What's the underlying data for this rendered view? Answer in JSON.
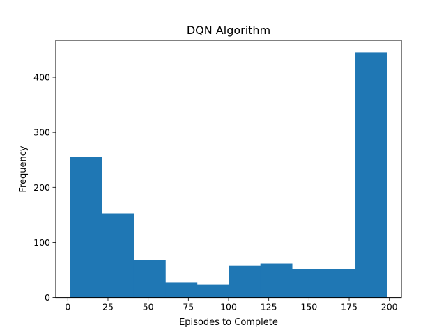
{
  "chart_data": {
    "type": "bar",
    "subtype": "histogram",
    "title": "DQN Algorithm",
    "xlabel": "Episodes to Complete",
    "ylabel": "Frequency",
    "bin_edges": [
      1.6,
      21.3,
      41.0,
      60.7,
      80.4,
      100.1,
      119.8,
      139.5,
      159.2,
      178.9,
      198.6
    ],
    "values": [
      255,
      153,
      68,
      28,
      24,
      58,
      62,
      52,
      52,
      445
    ],
    "xlim": [
      -7.5,
      207.5
    ],
    "ylim": [
      0,
      467
    ],
    "xticks": [
      0,
      25,
      50,
      75,
      100,
      125,
      150,
      175,
      200
    ],
    "xtick_labels": [
      "0",
      "25",
      "50",
      "75",
      "100",
      "125",
      "150",
      "175",
      "200"
    ],
    "yticks": [
      0,
      100,
      200,
      300,
      400
    ],
    "ytick_labels": [
      "0",
      "100",
      "200",
      "300",
      "400"
    ],
    "bar_color": "#1f77b4",
    "grid": false,
    "legend": "none"
  }
}
